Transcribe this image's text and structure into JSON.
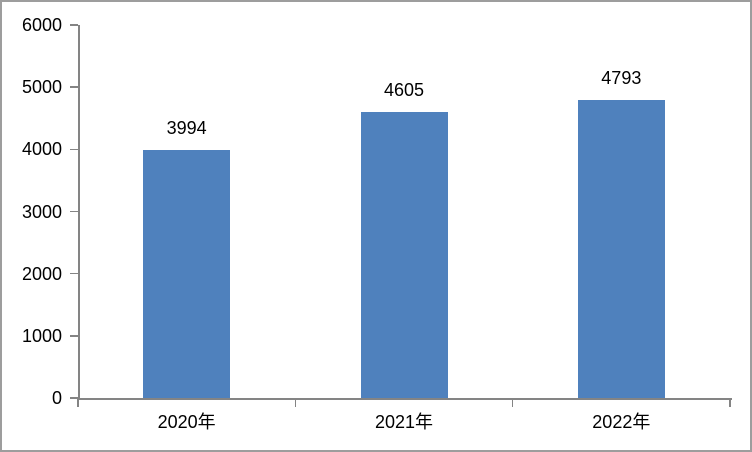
{
  "chart_data": {
    "type": "bar",
    "title": "",
    "xlabel": "",
    "ylabel": "",
    "categories": [
      "2020年",
      "2021年",
      "2022年"
    ],
    "values": [
      3994,
      4605,
      4793
    ],
    "data_labels": [
      "3994",
      "4605",
      "4793"
    ],
    "ylim": [
      0,
      6000
    ],
    "yticks": [
      "0",
      "1000",
      "2000",
      "3000",
      "4000",
      "5000",
      "6000"
    ],
    "ytick_values": [
      0,
      1000,
      2000,
      3000,
      4000,
      5000,
      6000
    ],
    "grid": false,
    "legend": "none",
    "colors": {
      "bar": "#4F81BD",
      "axis": "#848484",
      "text": "#000000",
      "chart_border": "#9D9D9D",
      "background": "#FFFFFF"
    }
  }
}
